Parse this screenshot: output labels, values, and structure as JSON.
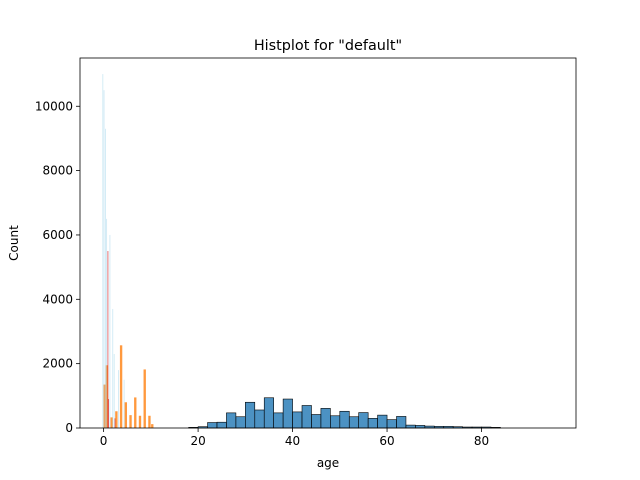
{
  "chart_data": {
    "type": "bar",
    "title": "Histplot for \"default\"",
    "xlabel": "age",
    "ylabel": "Count",
    "xlim": [
      -5,
      100
    ],
    "ylim": [
      0,
      11500
    ],
    "x_ticks": [
      0,
      20,
      40,
      60,
      80
    ],
    "y_ticks": [
      0,
      2000,
      4000,
      6000,
      8000,
      10000
    ],
    "grid": false,
    "legend": "none",
    "series": [
      {
        "color": "#1f77b4",
        "bin_width": 2,
        "bins": [
          {
            "x": 19,
            "value": 20
          },
          {
            "x": 21,
            "value": 40
          },
          {
            "x": 23,
            "value": 170
          },
          {
            "x": 25,
            "value": 180
          },
          {
            "x": 27,
            "value": 470
          },
          {
            "x": 29,
            "value": 350
          },
          {
            "x": 31,
            "value": 800
          },
          {
            "x": 33,
            "value": 560
          },
          {
            "x": 35,
            "value": 940
          },
          {
            "x": 37,
            "value": 470
          },
          {
            "x": 39,
            "value": 900
          },
          {
            "x": 41,
            "value": 500
          },
          {
            "x": 43,
            "value": 700
          },
          {
            "x": 45,
            "value": 420
          },
          {
            "x": 47,
            "value": 610
          },
          {
            "x": 49,
            "value": 380
          },
          {
            "x": 51,
            "value": 520
          },
          {
            "x": 53,
            "value": 350
          },
          {
            "x": 55,
            "value": 480
          },
          {
            "x": 57,
            "value": 300
          },
          {
            "x": 59,
            "value": 400
          },
          {
            "x": 61,
            "value": 260
          },
          {
            "x": 63,
            "value": 360
          },
          {
            "x": 65,
            "value": 90
          },
          {
            "x": 67,
            "value": 80
          },
          {
            "x": 69,
            "value": 60
          },
          {
            "x": 71,
            "value": 50
          },
          {
            "x": 73,
            "value": 50
          },
          {
            "x": 75,
            "value": 40
          },
          {
            "x": 77,
            "value": 30
          },
          {
            "x": 79,
            "value": 30
          },
          {
            "x": 81,
            "value": 30
          },
          {
            "x": 83,
            "value": 20
          }
        ]
      },
      {
        "color": "#ff7f0e",
        "bin_width": 0.5,
        "bins": [
          {
            "x": 0.2,
            "value": 1350
          },
          {
            "x": 0.7,
            "value": 1950
          },
          {
            "x": 1.7,
            "value": 330
          },
          {
            "x": 2.7,
            "value": 520
          },
          {
            "x": 3.7,
            "value": 2570
          },
          {
            "x": 4.7,
            "value": 800
          },
          {
            "x": 5.7,
            "value": 400
          },
          {
            "x": 6.7,
            "value": 950
          },
          {
            "x": 7.7,
            "value": 380
          },
          {
            "x": 8.7,
            "value": 1820
          },
          {
            "x": 9.7,
            "value": 380
          },
          {
            "x": 10.3,
            "value": 120
          }
        ]
      },
      {
        "color": "#d62728",
        "bin_width": 0.15,
        "bins": [
          {
            "x": 0.9,
            "value": 5500
          },
          {
            "x": 1.05,
            "value": 900
          },
          {
            "x": 2.4,
            "value": 300
          }
        ]
      },
      {
        "color": "#9fd4ea",
        "bin_width": 0.1,
        "bins": [
          {
            "x": -0.2,
            "value": 11000
          },
          {
            "x": 0.05,
            "value": 10500
          },
          {
            "x": 0.35,
            "value": 9300
          },
          {
            "x": 0.6,
            "value": 6500
          },
          {
            "x": 1.3,
            "value": 6000
          },
          {
            "x": 1.9,
            "value": 3700
          },
          {
            "x": 2.2,
            "value": 2300
          },
          {
            "x": 3.1,
            "value": 1800
          },
          {
            "x": 4.3,
            "value": 1500
          }
        ]
      }
    ]
  }
}
